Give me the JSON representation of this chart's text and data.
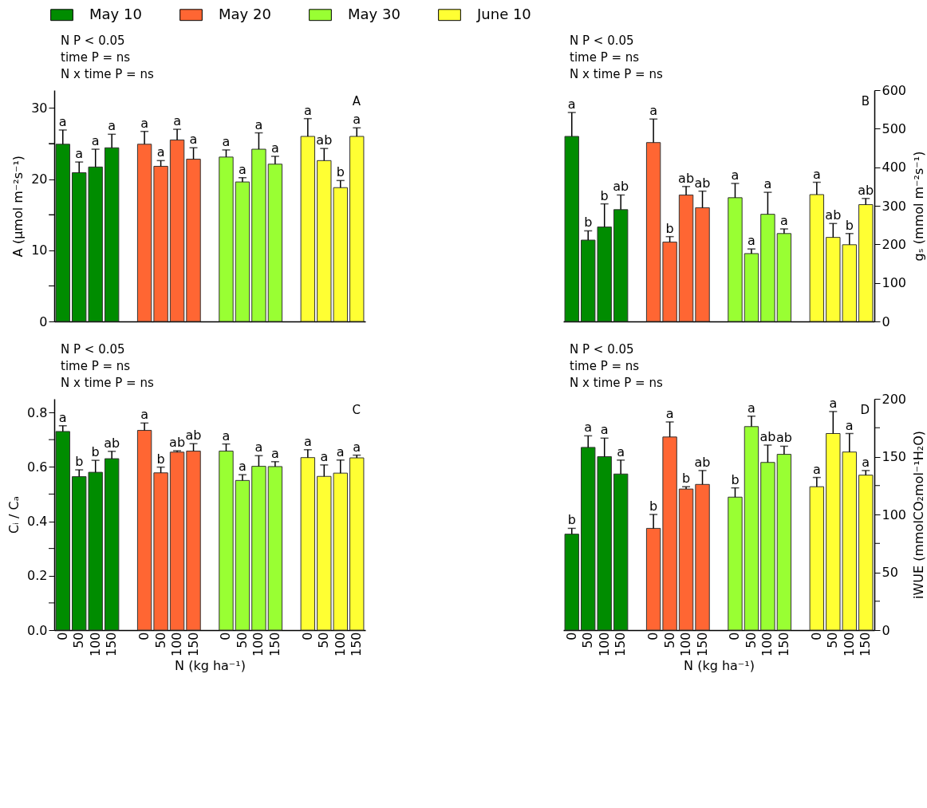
{
  "chart_data": [
    {
      "type": "bar",
      "categories": [
        "0",
        "50",
        "100",
        "150",
        null,
        "0",
        "50",
        "100",
        "150",
        null,
        "0",
        "50",
        "100",
        "150",
        null,
        "0",
        "50",
        "100",
        "150"
      ],
      "ylabel": "A (μmol m⁻²s⁻¹)",
      "ylim": [
        0,
        32.5
      ],
      "yticks": [
        0,
        {
          "value": 5,
          "label": null
        },
        10,
        {
          "value": 15,
          "label": null
        },
        20,
        {
          "value": 25,
          "label": null
        },
        30
      ],
      "tick_labels": "y",
      "legend": "top",
      "annotations": [
        "N P < 0.05",
        "time P = ns",
        "N x time P = ns",
        "A"
      ],
      "series": [
        {
          "name": "May 10",
          "color": "#008c00",
          "values": [
            24.9,
            20.9,
            21.7,
            24.4,
            null,
            null,
            null,
            null,
            null,
            null,
            null,
            null,
            null,
            null,
            null,
            null,
            null,
            null,
            null
          ],
          "errors": [
            2.0,
            1.5,
            2.5,
            1.9,
            null,
            null,
            null,
            null,
            null,
            null,
            null,
            null,
            null,
            null,
            null,
            null,
            null,
            null,
            null
          ],
          "value_labels": [
            "a",
            "a",
            "a",
            "a",
            null,
            null,
            null,
            null,
            null,
            null,
            null,
            null,
            null,
            null,
            null,
            null,
            null,
            null,
            null
          ]
        },
        {
          "name": "May 20",
          "color": "#ff6633",
          "values": [
            null,
            null,
            null,
            null,
            null,
            24.9,
            21.8,
            25.5,
            22.8,
            null,
            null,
            null,
            null,
            null,
            null,
            null,
            null,
            null,
            null
          ],
          "errors": [
            null,
            null,
            null,
            null,
            null,
            1.8,
            0.8,
            1.5,
            1.6,
            null,
            null,
            null,
            null,
            null,
            null,
            null,
            null,
            null,
            null
          ],
          "value_labels": [
            null,
            null,
            null,
            null,
            null,
            "a",
            "a",
            "a",
            "a",
            null,
            null,
            null,
            null,
            null,
            null,
            null,
            null,
            null,
            null
          ]
        },
        {
          "name": "May 30",
          "color": "#99ff33",
          "values": [
            null,
            null,
            null,
            null,
            null,
            null,
            null,
            null,
            null,
            null,
            23.1,
            19.6,
            24.2,
            22.1,
            null,
            null,
            null,
            null,
            null
          ],
          "errors": [
            null,
            null,
            null,
            null,
            null,
            null,
            null,
            null,
            null,
            null,
            1.0,
            0.6,
            2.3,
            1.1,
            null,
            null,
            null,
            null,
            null
          ],
          "value_labels": [
            null,
            null,
            null,
            null,
            null,
            null,
            null,
            null,
            null,
            null,
            "a",
            "a",
            "a",
            "a",
            null,
            null,
            null,
            null,
            null
          ]
        },
        {
          "name": "June 10",
          "color": "#ffff33",
          "values": [
            null,
            null,
            null,
            null,
            null,
            null,
            null,
            null,
            null,
            null,
            null,
            null,
            null,
            null,
            null,
            26.0,
            22.6,
            18.8,
            26.0
          ],
          "errors": [
            null,
            null,
            null,
            null,
            null,
            null,
            null,
            null,
            null,
            null,
            null,
            null,
            null,
            null,
            null,
            2.5,
            1.7,
            1.0,
            1.2
          ],
          "value_labels": [
            null,
            null,
            null,
            null,
            null,
            null,
            null,
            null,
            null,
            null,
            null,
            null,
            null,
            null,
            null,
            "a",
            "ab",
            "b",
            "a"
          ]
        }
      ]
    },
    {
      "type": "bar",
      "categories": [
        "0",
        "50",
        "100",
        "150",
        null,
        "0",
        "50",
        "100",
        "150",
        null,
        "0",
        "50",
        "100",
        "150",
        null,
        "0",
        "50",
        "100",
        "150"
      ],
      "y2label": "gₛ (mmol m⁻²s⁻¹)",
      "y2lim": [
        0,
        600
      ],
      "y2ticks": [
        0,
        100,
        200,
        300,
        400,
        500,
        600
      ],
      "tick_labels": "y",
      "annotations": [
        "N P < 0.05",
        "time P = ns",
        "N x time P = ns",
        "B"
      ],
      "series": [
        {
          "axis": "y2",
          "color": "#008c00",
          "values": [
            480,
            211,
            245,
            290,
            null,
            null,
            null,
            null,
            null,
            null,
            null,
            null,
            null,
            null,
            null,
            null,
            null,
            null,
            null
          ],
          "errors": [
            62,
            24,
            60,
            38,
            null,
            null,
            null,
            null,
            null,
            null,
            null,
            null,
            null,
            null,
            null,
            null,
            null,
            null,
            null
          ],
          "value_labels": [
            "a",
            "b",
            "b",
            "ab",
            null,
            null,
            null,
            null,
            null,
            null,
            null,
            null,
            null,
            null,
            null,
            null,
            null,
            null,
            null
          ]
        },
        {
          "axis": "y2",
          "color": "#ff6633",
          "values": [
            null,
            null,
            null,
            null,
            null,
            464,
            206,
            328,
            295,
            null,
            null,
            null,
            null,
            null,
            null,
            null,
            null,
            null,
            null
          ],
          "errors": [
            null,
            null,
            null,
            null,
            null,
            61,
            14,
            22,
            43,
            null,
            null,
            null,
            null,
            null,
            null,
            null,
            null,
            null,
            null
          ],
          "value_labels": [
            null,
            null,
            null,
            null,
            null,
            "a",
            "b",
            "ab",
            "ab",
            null,
            null,
            null,
            null,
            null,
            null,
            null,
            null,
            null,
            null
          ]
        },
        {
          "axis": "y2",
          "color": "#99ff33",
          "values": [
            null,
            null,
            null,
            null,
            null,
            null,
            null,
            null,
            null,
            null,
            321,
            176,
            278,
            228,
            null,
            null,
            null,
            null,
            null
          ],
          "errors": [
            null,
            null,
            null,
            null,
            null,
            null,
            null,
            null,
            null,
            null,
            37,
            12,
            57,
            12,
            null,
            null,
            null,
            null,
            null
          ],
          "value_labels": [
            null,
            null,
            null,
            null,
            null,
            null,
            null,
            null,
            null,
            null,
            "a",
            "a",
            "a",
            "a",
            null,
            null,
            null,
            null,
            null
          ]
        },
        {
          "axis": "y2",
          "color": "#ffff33",
          "values": [
            null,
            null,
            null,
            null,
            null,
            null,
            null,
            null,
            null,
            null,
            null,
            null,
            null,
            null,
            null,
            329,
            218,
            199,
            303
          ],
          "errors": [
            null,
            null,
            null,
            null,
            null,
            null,
            null,
            null,
            null,
            null,
            null,
            null,
            null,
            null,
            null,
            32,
            36,
            29,
            16
          ],
          "value_labels": [
            null,
            null,
            null,
            null,
            null,
            null,
            null,
            null,
            null,
            null,
            null,
            null,
            null,
            null,
            null,
            "a",
            "ab",
            "b",
            "ab"
          ]
        }
      ]
    },
    {
      "type": "bar",
      "categories": [
        "0",
        "50",
        "100",
        "150",
        null,
        "0",
        "50",
        "100",
        "150",
        null,
        "0",
        "50",
        "100",
        "150",
        null,
        "0",
        "50",
        "100",
        "150"
      ],
      "xlabel": "N (kg ha⁻¹)",
      "ylabel": "Cᵢ / Cₐ",
      "ylim": [
        0,
        0.85
      ],
      "yticks": [
        {
          "value": 0,
          "label": "0.0"
        },
        {
          "value": 0.1,
          "label": null
        },
        0.2,
        {
          "value": 0.3,
          "label": null
        },
        0.4,
        {
          "value": 0.5,
          "label": null
        },
        0.6,
        {
          "value": 0.7,
          "label": null
        },
        0.8
      ],
      "annotations": [
        "N P < 0.05",
        "time P = ns",
        "N x time P = ns",
        "C"
      ],
      "series": [
        {
          "color": "#008c00",
          "values": [
            0.73,
            0.564,
            0.58,
            0.63,
            null,
            null,
            null,
            null,
            null,
            null,
            null,
            null,
            null,
            null,
            null,
            null,
            null,
            null,
            null
          ],
          "errors": [
            0.021,
            0.025,
            0.044,
            0.027,
            null,
            null,
            null,
            null,
            null,
            null,
            null,
            null,
            null,
            null,
            null,
            null,
            null,
            null,
            null
          ],
          "value_labels": [
            "a",
            "b",
            "b",
            "ab",
            null,
            null,
            null,
            null,
            null,
            null,
            null,
            null,
            null,
            null,
            null,
            null,
            null,
            null,
            null
          ]
        },
        {
          "color": "#ff6633",
          "values": [
            null,
            null,
            null,
            null,
            null,
            0.734,
            0.578,
            0.654,
            0.658,
            null,
            null,
            null,
            null,
            null,
            null,
            null,
            null,
            null,
            null
          ],
          "errors": [
            null,
            null,
            null,
            null,
            null,
            0.027,
            0.021,
            0.005,
            0.027,
            null,
            null,
            null,
            null,
            null,
            null,
            null,
            null,
            null,
            null
          ],
          "value_labels": [
            null,
            null,
            null,
            null,
            null,
            "a",
            "b",
            "ab",
            "ab",
            null,
            null,
            null,
            null,
            null,
            null,
            null,
            null,
            null,
            null
          ]
        },
        {
          "color": "#99ff33",
          "values": [
            null,
            null,
            null,
            null,
            null,
            null,
            null,
            null,
            null,
            null,
            0.658,
            0.55,
            0.602,
            0.601,
            null,
            null,
            null,
            null,
            null
          ],
          "errors": [
            null,
            null,
            null,
            null,
            null,
            null,
            null,
            null,
            null,
            null,
            0.026,
            0.021,
            0.039,
            0.018,
            null,
            null,
            null,
            null,
            null
          ],
          "value_labels": [
            null,
            null,
            null,
            null,
            null,
            null,
            null,
            null,
            null,
            null,
            "a",
            "a",
            "a",
            "a",
            null,
            null,
            null,
            null,
            null
          ]
        },
        {
          "color": "#ffff33",
          "values": [
            null,
            null,
            null,
            null,
            null,
            null,
            null,
            null,
            null,
            null,
            null,
            null,
            null,
            null,
            null,
            0.634,
            0.565,
            0.577,
            0.633
          ],
          "errors": [
            null,
            null,
            null,
            null,
            null,
            null,
            null,
            null,
            null,
            null,
            null,
            null,
            null,
            null,
            null,
            0.029,
            0.042,
            0.048,
            0.01
          ],
          "value_labels": [
            null,
            null,
            null,
            null,
            null,
            null,
            null,
            null,
            null,
            null,
            null,
            null,
            null,
            null,
            null,
            "a",
            "a",
            "a",
            "a"
          ]
        }
      ]
    },
    {
      "type": "bar",
      "categories": [
        "0",
        "50",
        "100",
        "150",
        null,
        "0",
        "50",
        "100",
        "150",
        null,
        "0",
        "50",
        "100",
        "150",
        null,
        "0",
        "50",
        "100",
        "150"
      ],
      "xlabel": "N (kg ha⁻¹)",
      "y2label": "iWUE (mmolCO₂mol⁻¹H₂O)",
      "y2lim": [
        0,
        200
      ],
      "y2ticks": [
        0,
        {
          "value": 25,
          "label": null
        },
        50,
        {
          "value": 75,
          "label": null
        },
        100,
        {
          "value": 125,
          "label": null
        },
        150,
        {
          "value": 175,
          "label": null
        },
        200
      ],
      "annotations": [
        "N P < 0.05",
        "time P = ns",
        "N x time P = ns",
        "D"
      ],
      "series": [
        {
          "axis": "y2",
          "color": "#008c00",
          "values": [
            83,
            158,
            150,
            135,
            null,
            null,
            null,
            null,
            null,
            null,
            null,
            null,
            null,
            null,
            null,
            null,
            null,
            null,
            null
          ],
          "errors": [
            5,
            10,
            16,
            12,
            null,
            null,
            null,
            null,
            null,
            null,
            null,
            null,
            null,
            null,
            null,
            null,
            null,
            null,
            null
          ],
          "value_labels": [
            "b",
            "a",
            "a",
            "a",
            null,
            null,
            null,
            null,
            null,
            null,
            null,
            null,
            null,
            null,
            null,
            null,
            null,
            null,
            null
          ]
        },
        {
          "axis": "y2",
          "color": "#ff6633",
          "values": [
            null,
            null,
            null,
            null,
            null,
            88,
            167,
            122,
            126,
            null,
            null,
            null,
            null,
            null,
            null,
            null,
            null,
            null,
            null
          ],
          "errors": [
            null,
            null,
            null,
            null,
            null,
            12,
            13,
            2,
            12,
            null,
            null,
            null,
            null,
            null,
            null,
            null,
            null,
            null,
            null
          ],
          "value_labels": [
            null,
            null,
            null,
            null,
            null,
            "b",
            "a",
            "b",
            "ab",
            null,
            null,
            null,
            null,
            null,
            null,
            null,
            null,
            null,
            null
          ]
        },
        {
          "axis": "y2",
          "color": "#99ff33",
          "values": [
            null,
            null,
            null,
            null,
            null,
            null,
            null,
            null,
            null,
            null,
            115,
            176,
            145,
            152,
            null,
            null,
            null,
            null,
            null
          ],
          "errors": [
            null,
            null,
            null,
            null,
            null,
            null,
            null,
            null,
            null,
            null,
            8,
            9,
            15,
            7,
            null,
            null,
            null,
            null,
            null
          ],
          "value_labels": [
            null,
            null,
            null,
            null,
            null,
            null,
            null,
            null,
            null,
            null,
            "b",
            "a",
            "ab",
            "ab",
            null,
            null,
            null,
            null,
            null
          ]
        },
        {
          "axis": "y2",
          "color": "#ffff33",
          "values": [
            null,
            null,
            null,
            null,
            null,
            null,
            null,
            null,
            null,
            null,
            null,
            null,
            null,
            null,
            null,
            124,
            170,
            154,
            134
          ],
          "errors": [
            null,
            null,
            null,
            null,
            null,
            null,
            null,
            null,
            null,
            null,
            null,
            null,
            null,
            null,
            null,
            8,
            19,
            16,
            4
          ],
          "value_labels": [
            null,
            null,
            null,
            null,
            null,
            null,
            null,
            null,
            null,
            null,
            null,
            null,
            null,
            null,
            null,
            "a",
            "a",
            "a",
            "a"
          ]
        }
      ]
    }
  ]
}
